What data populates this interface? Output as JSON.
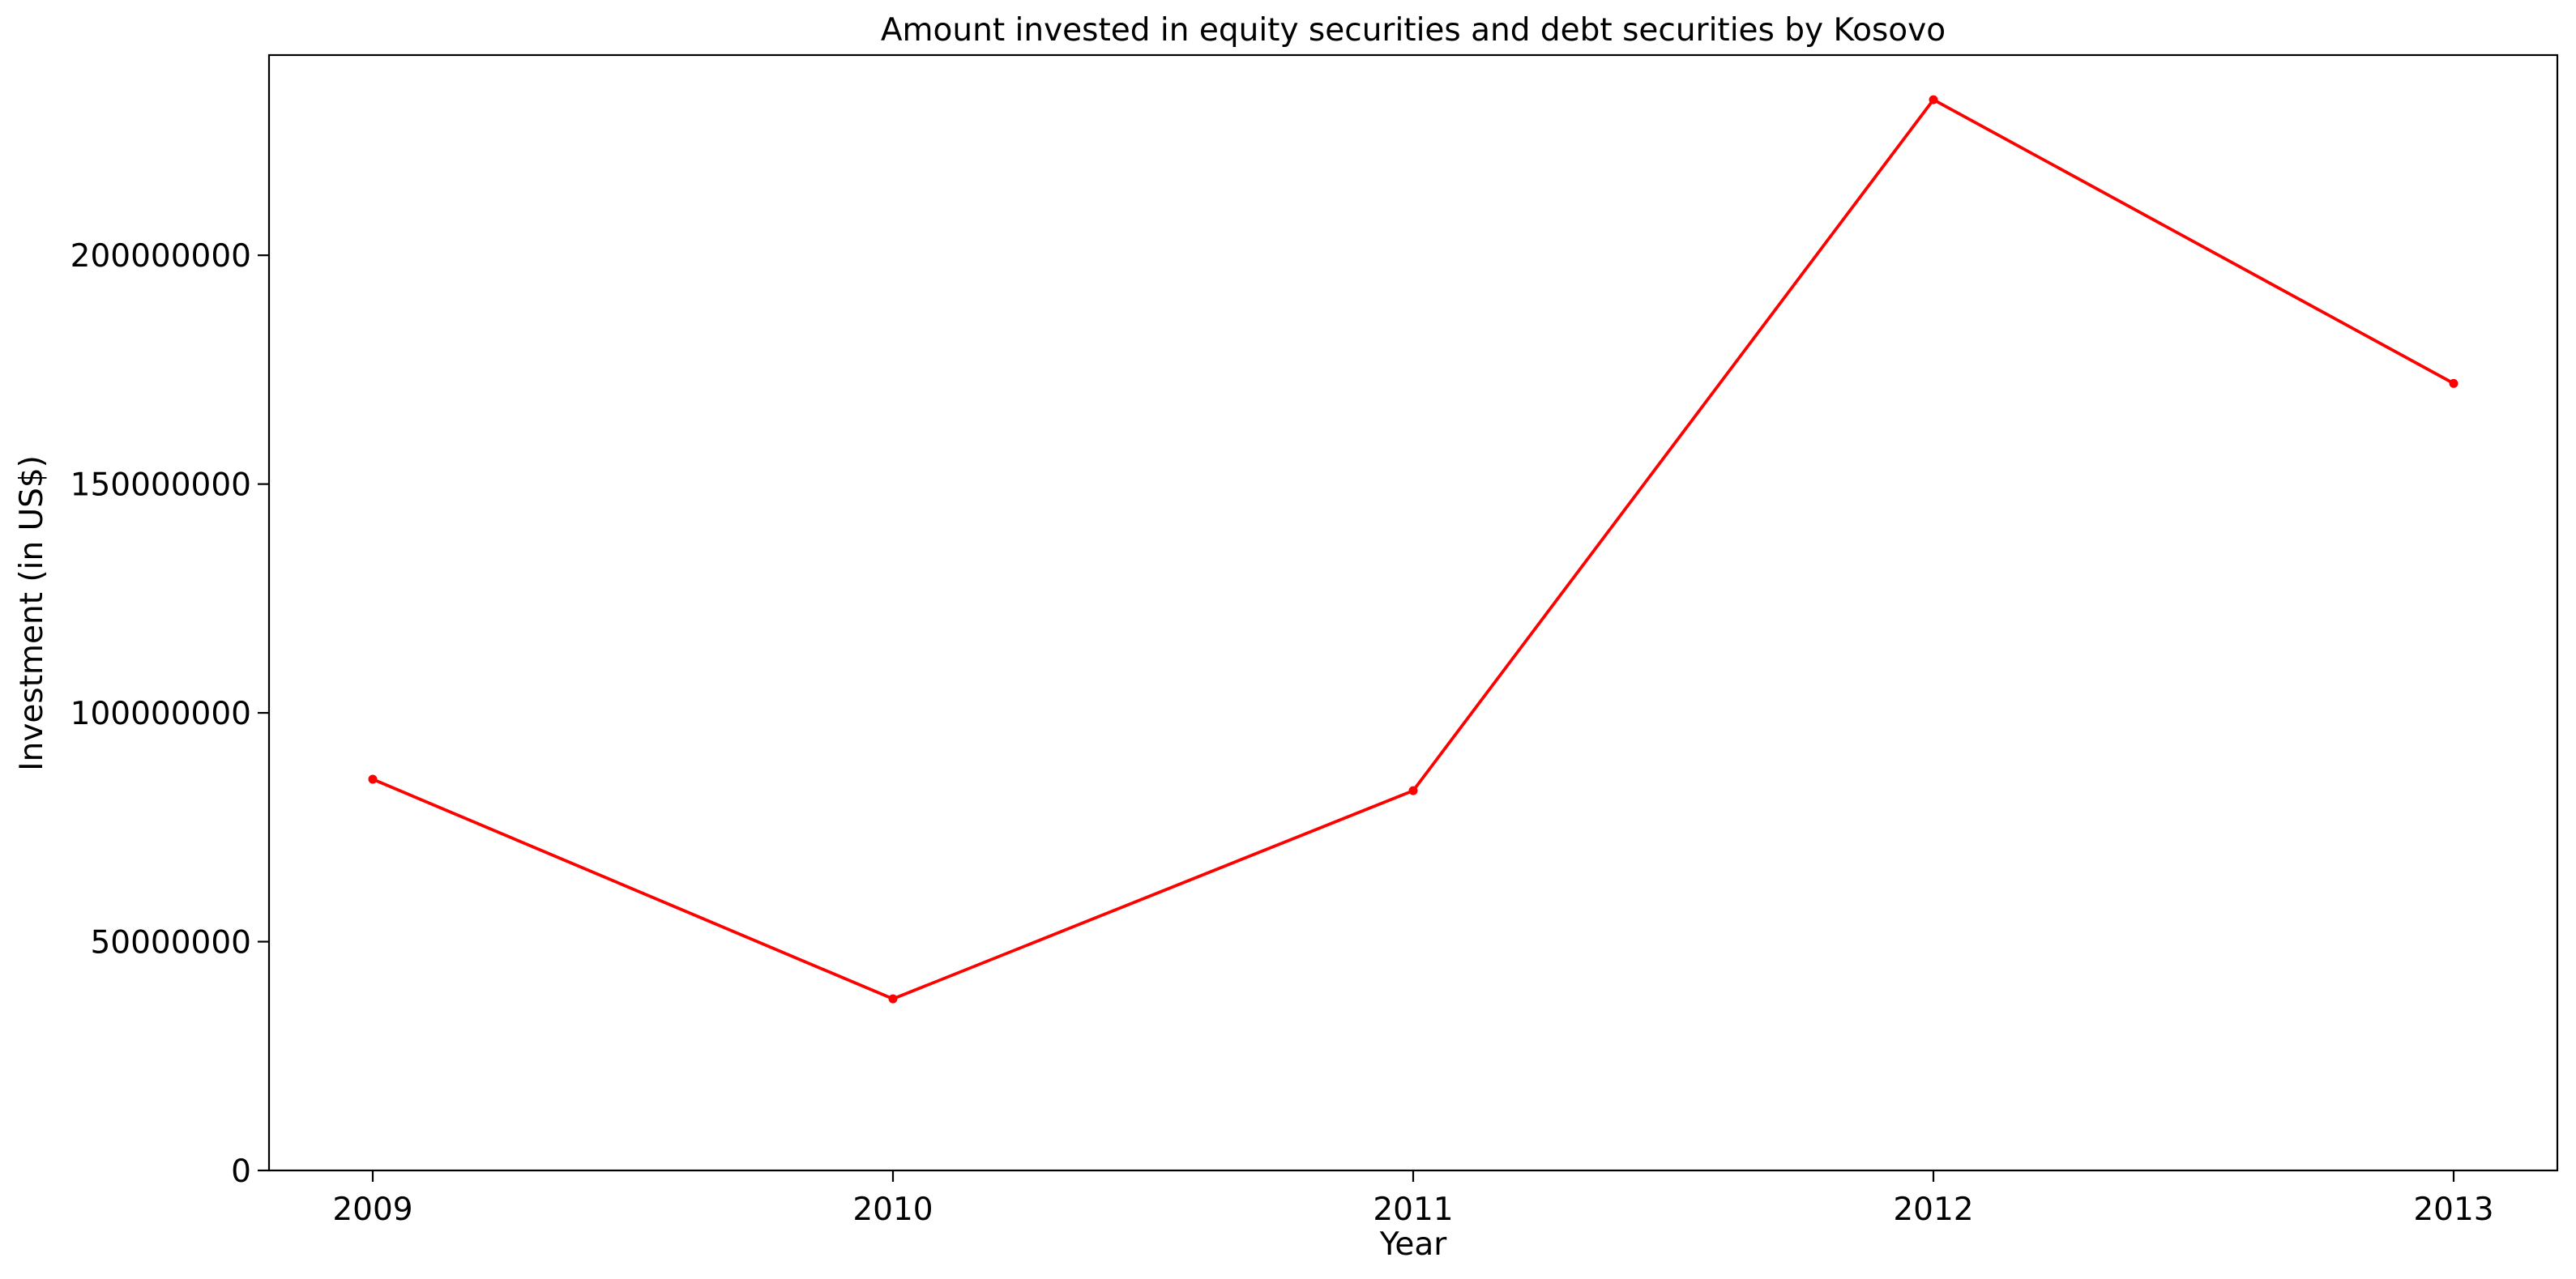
{
  "chart_data": {
    "type": "line",
    "title": "Amount invested in equity securities and debt securities by Kosovo",
    "xlabel": "Year",
    "ylabel": "Investment (in US$)",
    "categories": [
      "2009",
      "2010",
      "2011",
      "2012",
      "2013"
    ],
    "series": [
      {
        "values": [
          85500000,
          37500000,
          83000000,
          234000000,
          172000000
        ],
        "color": "#ff0000",
        "marker": "circle"
      }
    ],
    "yticks": [
      0,
      50000000,
      100000000,
      150000000,
      200000000
    ],
    "ytick_labels": [
      "0",
      "50000000",
      "100000000",
      "150000000",
      "200000000"
    ],
    "ylim": [
      0,
      243750000
    ],
    "grid": false,
    "legend": false
  }
}
